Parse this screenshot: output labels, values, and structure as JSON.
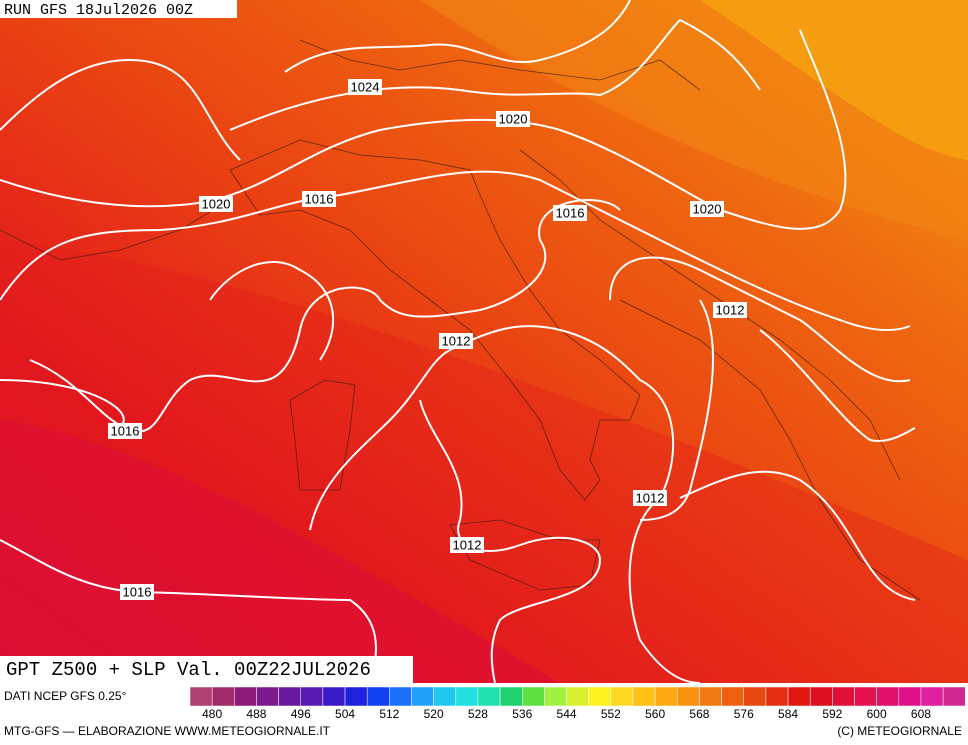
{
  "header": {
    "run": "RUN GFS 18Jul2026 00Z"
  },
  "map": {
    "title": "GPT Z500 + SLP Val. 00Z22JUL2026",
    "isobar_labels": [
      "1024",
      "1020",
      "1020",
      "1016",
      "1016",
      "1020",
      "1012",
      "1012",
      "1016",
      "1012",
      "1012",
      "1016"
    ]
  },
  "footer": {
    "source": "DATI NCEP GFS 0.25°",
    "credit": "MTG-GFS — ELABORAZIONE WWW.METEOGIORNALE.IT",
    "copyright": "(C) METEOGIORNALE"
  },
  "colorbar": {
    "ticks": [
      480,
      488,
      496,
      504,
      512,
      520,
      528,
      536,
      544,
      552,
      560,
      568,
      576,
      584,
      592,
      600,
      608
    ]
  }
}
